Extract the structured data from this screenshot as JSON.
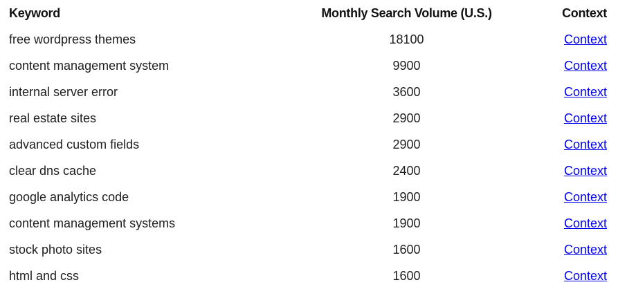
{
  "table": {
    "headers": {
      "keyword": "Keyword",
      "volume": "Monthly Search Volume (U.S.)",
      "context": "Context"
    },
    "rows": [
      {
        "keyword": "free wordpress themes",
        "volume": "18100",
        "context": "Context"
      },
      {
        "keyword": "content management system",
        "volume": "9900",
        "context": "Context"
      },
      {
        "keyword": "internal server error",
        "volume": "3600",
        "context": "Context"
      },
      {
        "keyword": "real estate sites",
        "volume": "2900",
        "context": "Context"
      },
      {
        "keyword": "advanced custom fields",
        "volume": "2900",
        "context": "Context"
      },
      {
        "keyword": "clear dns cache",
        "volume": "2400",
        "context": "Context"
      },
      {
        "keyword": "google analytics code",
        "volume": "1900",
        "context": "Context"
      },
      {
        "keyword": "content management systems",
        "volume": "1900",
        "context": "Context"
      },
      {
        "keyword": "stock photo sites",
        "volume": "1600",
        "context": "Context"
      },
      {
        "keyword": "html and css",
        "volume": "1600",
        "context": "Context"
      }
    ]
  },
  "colors": {
    "link": "#0000ee",
    "text": "#1e1e1e",
    "background": "#ffffff"
  }
}
